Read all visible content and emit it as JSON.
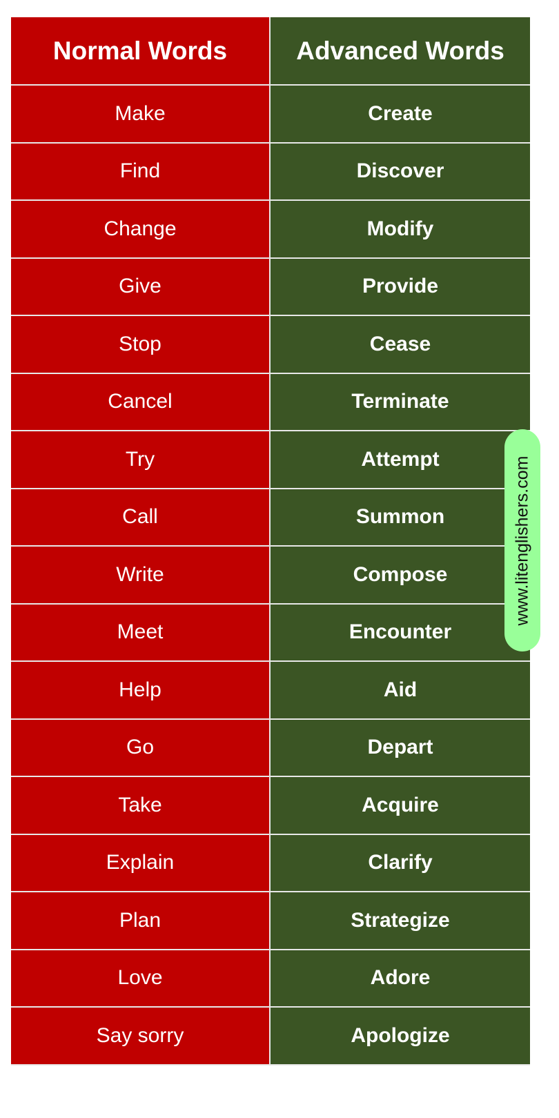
{
  "colors": {
    "normal_bg": "#c00000",
    "advanced_bg": "#3b5524",
    "watermark_bg": "#99ff99"
  },
  "headers": {
    "normal": "Normal Words",
    "advanced": "Advanced Words"
  },
  "rows": [
    {
      "normal": "Make",
      "advanced": "Create"
    },
    {
      "normal": "Find",
      "advanced": "Discover"
    },
    {
      "normal": "Change",
      "advanced": "Modify"
    },
    {
      "normal": "Give",
      "advanced": "Provide"
    },
    {
      "normal": "Stop",
      "advanced": "Cease"
    },
    {
      "normal": "Cancel",
      "advanced": "Terminate"
    },
    {
      "normal": "Try",
      "advanced": "Attempt"
    },
    {
      "normal": "Call",
      "advanced": "Summon"
    },
    {
      "normal": "Write",
      "advanced": "Compose"
    },
    {
      "normal": "Meet",
      "advanced": "Encounter"
    },
    {
      "normal": "Help",
      "advanced": "Aid"
    },
    {
      "normal": "Go",
      "advanced": "Depart"
    },
    {
      "normal": "Take",
      "advanced": "Acquire"
    },
    {
      "normal": "Explain",
      "advanced": "Clarify"
    },
    {
      "normal": "Plan",
      "advanced": "Strategize"
    },
    {
      "normal": "Love",
      "advanced": "Adore"
    },
    {
      "normal": "Say sorry",
      "advanced": "Apologize"
    }
  ],
  "watermark": "www.litenglishers.com"
}
